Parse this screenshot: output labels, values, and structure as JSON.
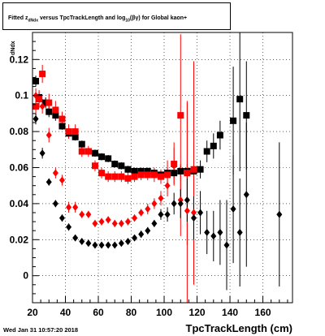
{
  "title": {
    "prefix": "Fitted  z",
    "sub1": "dNdx",
    "middle": " versus TpcTrackLength and log",
    "sub2": "10",
    "suffix": "(βγ) for Global kaon+"
  },
  "datestamp": "Wed Jan 31 10:57:20 2018",
  "chart_data": {
    "type": "scatter",
    "xlabel": "TpcTrackLength (cm)",
    "ylabel": "dNdx",
    "xlim": [
      20,
      178
    ],
    "ylim": [
      -0.015,
      0.135
    ],
    "xticks": [
      20,
      40,
      60,
      80,
      100,
      120,
      140,
      160
    ],
    "yticks": [
      0,
      0.02,
      0.04,
      0.06,
      0.08,
      0.1,
      0.12
    ],
    "ytick_labels": [
      "0",
      "0.02",
      "0.04",
      "0.06",
      "0.08",
      "0.1",
      "0.12"
    ],
    "grid": true,
    "colors": {
      "black": "#000000",
      "red": "#ff0000"
    },
    "series": [
      {
        "color": "#000000",
        "marker": "square",
        "points": [
          [
            22,
            0.108,
            0.003
          ],
          [
            24,
            0.099,
            0.003
          ],
          [
            28,
            0.096,
            0.003
          ],
          [
            30,
            0.091,
            0.003
          ],
          [
            34,
            0.089,
            0.003
          ],
          [
            38,
            0.083,
            0.002
          ],
          [
            42,
            0.079,
            0.002
          ],
          [
            46,
            0.077,
            0.002
          ],
          [
            50,
            0.073,
            0.002
          ],
          [
            54,
            0.069,
            0.002
          ],
          [
            58,
            0.068,
            0.002
          ],
          [
            62,
            0.066,
            0.002
          ],
          [
            66,
            0.065,
            0.002
          ],
          [
            70,
            0.062,
            0.002
          ],
          [
            74,
            0.061,
            0.002
          ],
          [
            78,
            0.059,
            0.002
          ],
          [
            82,
            0.058,
            0.002
          ],
          [
            86,
            0.058,
            0.002
          ],
          [
            90,
            0.058,
            0.002
          ],
          [
            94,
            0.057,
            0.002
          ],
          [
            98,
            0.056,
            0.002
          ],
          [
            102,
            0.057,
            0.003
          ],
          [
            106,
            0.057,
            0.003
          ],
          [
            110,
            0.058,
            0.003
          ],
          [
            114,
            0.058,
            0.004
          ],
          [
            118,
            0.058,
            0.004
          ],
          [
            122,
            0.059,
            0.005
          ],
          [
            126,
            0.069,
            0.006
          ],
          [
            130,
            0.072,
            0.007
          ],
          [
            134,
            0.078,
            0.008
          ],
          [
            142,
            0.086,
            0.03
          ],
          [
            146,
            0.098,
            0.04
          ],
          [
            150,
            0.089,
            0.03
          ]
        ]
      },
      {
        "color": "#ff0000",
        "marker": "square",
        "points": [
          [
            22,
            0.094,
            0.005
          ],
          [
            24,
            0.098,
            0.005
          ],
          [
            26,
            0.112,
            0.005
          ],
          [
            30,
            0.096,
            0.005
          ],
          [
            34,
            0.092,
            0.005
          ],
          [
            38,
            0.087,
            0.004
          ],
          [
            42,
            0.08,
            0.004
          ],
          [
            46,
            0.08,
            0.004
          ],
          [
            50,
            0.069,
            0.003
          ],
          [
            54,
            0.069,
            0.003
          ],
          [
            58,
            0.061,
            0.003
          ],
          [
            62,
            0.057,
            0.003
          ],
          [
            66,
            0.055,
            0.003
          ],
          [
            70,
            0.055,
            0.003
          ],
          [
            74,
            0.055,
            0.003
          ],
          [
            78,
            0.054,
            0.003
          ],
          [
            82,
            0.055,
            0.003
          ],
          [
            86,
            0.056,
            0.003
          ],
          [
            90,
            0.056,
            0.003
          ],
          [
            94,
            0.056,
            0.004
          ],
          [
            98,
            0.055,
            0.004
          ],
          [
            102,
            0.056,
            0.008
          ],
          [
            106,
            0.062,
            0.012
          ],
          [
            110,
            0.089,
            0.045
          ],
          [
            114,
            0.057,
            0.04
          ],
          [
            118,
            0.059,
            0.06
          ]
        ]
      },
      {
        "color": "#ff0000",
        "marker": "diamond",
        "points": [
          [
            22,
            0.1,
            0.004
          ],
          [
            26,
            0.094,
            0.004
          ],
          [
            30,
            0.078,
            0.004
          ],
          [
            34,
            0.057,
            0.003
          ],
          [
            38,
            0.053,
            0.003
          ],
          [
            42,
            0.038,
            0.003
          ],
          [
            46,
            0.038,
            0.003
          ],
          [
            50,
            0.034,
            0.002
          ],
          [
            54,
            0.034,
            0.002
          ],
          [
            58,
            0.029,
            0.002
          ],
          [
            62,
            0.03,
            0.002
          ],
          [
            66,
            0.031,
            0.002
          ],
          [
            70,
            0.029,
            0.002
          ],
          [
            74,
            0.029,
            0.002
          ],
          [
            78,
            0.03,
            0.002
          ],
          [
            82,
            0.032,
            0.002
          ],
          [
            86,
            0.035,
            0.002
          ],
          [
            90,
            0.037,
            0.003
          ],
          [
            94,
            0.04,
            0.003
          ],
          [
            98,
            0.043,
            0.004
          ],
          [
            102,
            0.05,
            0.006
          ],
          [
            106,
            0.061,
            0.01
          ],
          [
            110,
            0.042,
            0.02
          ],
          [
            114,
            0.036,
            0.06
          ],
          [
            118,
            0.035,
            0.04
          ]
        ]
      },
      {
        "color": "#000000",
        "marker": "diamond",
        "points": [
          [
            22,
            0.087,
            0.003
          ],
          [
            26,
            0.068,
            0.003
          ],
          [
            30,
            0.052,
            0.002
          ],
          [
            34,
            0.04,
            0.002
          ],
          [
            38,
            0.032,
            0.002
          ],
          [
            42,
            0.027,
            0.002
          ],
          [
            46,
            0.021,
            0.001
          ],
          [
            50,
            0.019,
            0.001
          ],
          [
            54,
            0.018,
            0.001
          ],
          [
            58,
            0.017,
            0.001
          ],
          [
            62,
            0.017,
            0.001
          ],
          [
            66,
            0.017,
            0.001
          ],
          [
            70,
            0.017,
            0.001
          ],
          [
            74,
            0.018,
            0.001
          ],
          [
            78,
            0.019,
            0.001
          ],
          [
            82,
            0.021,
            0.001
          ],
          [
            86,
            0.023,
            0.002
          ],
          [
            90,
            0.025,
            0.002
          ],
          [
            94,
            0.029,
            0.002
          ],
          [
            98,
            0.034,
            0.003
          ],
          [
            102,
            0.034,
            0.004
          ],
          [
            106,
            0.04,
            0.006
          ],
          [
            110,
            0.04,
            0.008
          ],
          [
            114,
            0.042,
            0.012
          ],
          [
            118,
            0.032,
            0.012
          ],
          [
            122,
            0.035,
            0.012
          ],
          [
            126,
            0.024,
            0.012
          ],
          [
            130,
            0.022,
            0.014
          ],
          [
            134,
            0.024,
            0.018
          ],
          [
            138,
            0.017,
            0.025
          ],
          [
            142,
            0.037,
            0.03
          ],
          [
            146,
            0.024,
            0.03
          ],
          [
            150,
            0.045,
            0.04
          ],
          [
            170,
            0.034,
            0.04
          ]
        ]
      }
    ]
  }
}
